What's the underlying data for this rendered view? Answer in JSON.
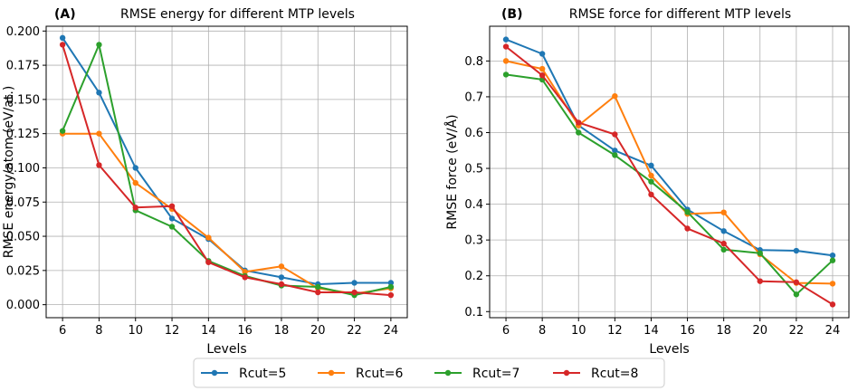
{
  "legend": [
    "Rcut=5",
    "Rcut=6",
    "Rcut=7",
    "Rcut=8"
  ],
  "colors": [
    "#1f77b4",
    "#ff7f0e",
    "#2ca02c",
    "#d62728"
  ],
  "chart_data": [
    {
      "type": "line",
      "panel_label": "(A)",
      "title": "RMSE energy for different MTP levels",
      "xlabel": "Levels",
      "ylabel": "RMSE energy/atom (eV/at.)",
      "x": [
        6,
        8,
        10,
        12,
        14,
        16,
        18,
        20,
        22,
        24
      ],
      "xlim": [
        5.1,
        24.9
      ],
      "ylim": [
        -0.0095,
        0.2035
      ],
      "yticks": [
        0.0,
        0.025,
        0.05,
        0.075,
        0.1,
        0.125,
        0.15,
        0.175,
        0.2
      ],
      "ytick_labels": [
        "0.000",
        "0.025",
        "0.050",
        "0.075",
        "0.100",
        "0.125",
        "0.150",
        "0.175",
        "0.200"
      ],
      "grid": true,
      "series": [
        {
          "name": "Rcut=5",
          "values": [
            0.195,
            0.155,
            0.1,
            0.063,
            0.048,
            0.025,
            0.02,
            0.015,
            0.016,
            0.016
          ]
        },
        {
          "name": "Rcut=6",
          "values": [
            0.125,
            0.125,
            0.089,
            0.07,
            0.049,
            0.024,
            0.028,
            0.012,
            0.008,
            0.012
          ]
        },
        {
          "name": "Rcut=7",
          "values": [
            0.127,
            0.19,
            0.069,
            0.057,
            0.032,
            0.021,
            0.014,
            0.013,
            0.007,
            0.013
          ]
        },
        {
          "name": "Rcut=8",
          "values": [
            0.19,
            0.102,
            0.071,
            0.072,
            0.031,
            0.02,
            0.015,
            0.009,
            0.009,
            0.007
          ]
        }
      ]
    },
    {
      "type": "line",
      "panel_label": "(B)",
      "title": "RMSE force for different MTP levels",
      "xlabel": "Levels",
      "ylabel": "RMSE force (eV/Å)",
      "x": [
        6,
        8,
        10,
        12,
        14,
        16,
        18,
        20,
        22,
        24
      ],
      "xlim": [
        5.1,
        24.9
      ],
      "ylim": [
        0.083,
        0.897
      ],
      "yticks": [
        0.1,
        0.2,
        0.3,
        0.4,
        0.5,
        0.6,
        0.7,
        0.8
      ],
      "ytick_labels": [
        "0.1",
        "0.2",
        "0.3",
        "0.4",
        "0.5",
        "0.6",
        "0.7",
        "0.8"
      ],
      "grid": true,
      "series": [
        {
          "name": "Rcut=5",
          "values": [
            0.86,
            0.82,
            0.62,
            0.55,
            0.508,
            0.385,
            0.325,
            0.272,
            0.27,
            0.257
          ]
        },
        {
          "name": "Rcut=6",
          "values": [
            0.8,
            0.778,
            0.62,
            0.702,
            0.48,
            0.373,
            0.377,
            0.26,
            0.18,
            0.178
          ]
        },
        {
          "name": "Rcut=7",
          "values": [
            0.762,
            0.748,
            0.6,
            0.537,
            0.463,
            0.378,
            0.273,
            0.263,
            0.148,
            0.243
          ]
        },
        {
          "name": "Rcut=8",
          "values": [
            0.84,
            0.76,
            0.628,
            0.595,
            0.427,
            0.332,
            0.29,
            0.185,
            0.182,
            0.12
          ]
        }
      ]
    }
  ]
}
